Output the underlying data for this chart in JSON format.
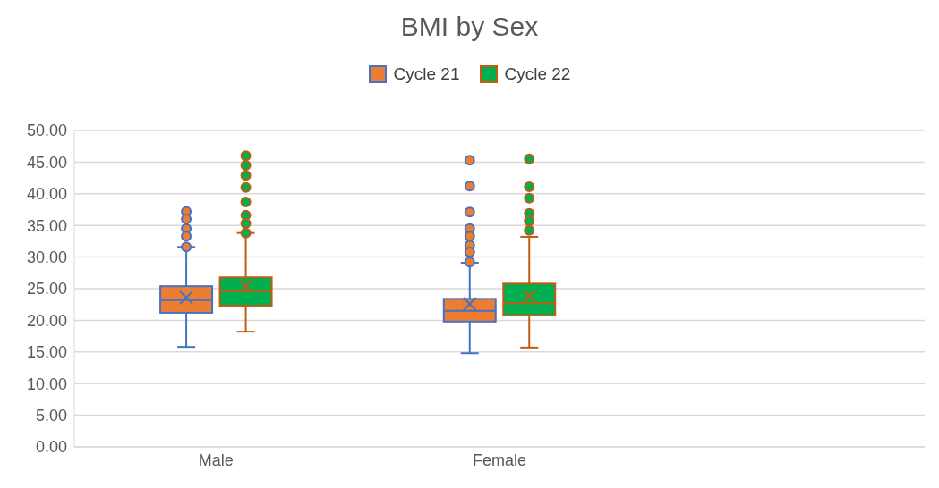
{
  "chart_data": {
    "type": "box",
    "title": "BMI by Sex",
    "categories": [
      "Male",
      "Female",
      null
    ],
    "series": [
      {
        "name": "Cycle 21",
        "color": "#ed7d31",
        "boxes": [
          {
            "low": 15.8,
            "q1": 21.2,
            "median": 23.2,
            "q3": 25.4,
            "high": 31.6,
            "mean": 23.6,
            "outliers": [
              37.2,
              36.0,
              34.5,
              33.3,
              31.6
            ]
          },
          {
            "low": 14.8,
            "q1": 19.8,
            "median": 21.5,
            "q3": 23.4,
            "high": 29.1,
            "mean": 22.6,
            "outliers": [
              45.3,
              41.2,
              37.1,
              34.5,
              33.3,
              31.9,
              30.8,
              29.2
            ]
          },
          null
        ]
      },
      {
        "name": "Cycle 22",
        "color": "#00b050",
        "boxes": [
          {
            "low": 18.2,
            "q1": 22.3,
            "median": 24.6,
            "q3": 26.8,
            "high": 33.8,
            "mean": 25.4,
            "outliers": [
              46.0,
              44.5,
              42.9,
              41.0,
              38.7,
              36.6,
              35.3,
              33.8
            ]
          },
          {
            "low": 15.7,
            "q1": 20.8,
            "median": 22.7,
            "q3": 25.8,
            "high": 33.2,
            "mean": 23.9,
            "outliers": [
              45.5,
              41.1,
              39.3,
              36.9,
              35.7,
              34.2
            ]
          },
          null
        ]
      }
    ],
    "ylim": [
      0,
      50
    ],
    "yticks": [
      {
        "value": 0,
        "label": "0.00"
      },
      {
        "value": 5,
        "label": "5.00"
      },
      {
        "value": 10,
        "label": "10.00"
      },
      {
        "value": 15,
        "label": "15.00"
      },
      {
        "value": 20,
        "label": "20.00"
      },
      {
        "value": 25,
        "label": "25.00"
      },
      {
        "value": 30,
        "label": "30.00"
      },
      {
        "value": 35,
        "label": "35.00"
      },
      {
        "value": 40,
        "label": "40.00"
      },
      {
        "value": 45,
        "label": "45.00"
      },
      {
        "value": 50,
        "label": "50.00"
      }
    ],
    "grid": "y",
    "legend": "top",
    "marker": "circle"
  }
}
